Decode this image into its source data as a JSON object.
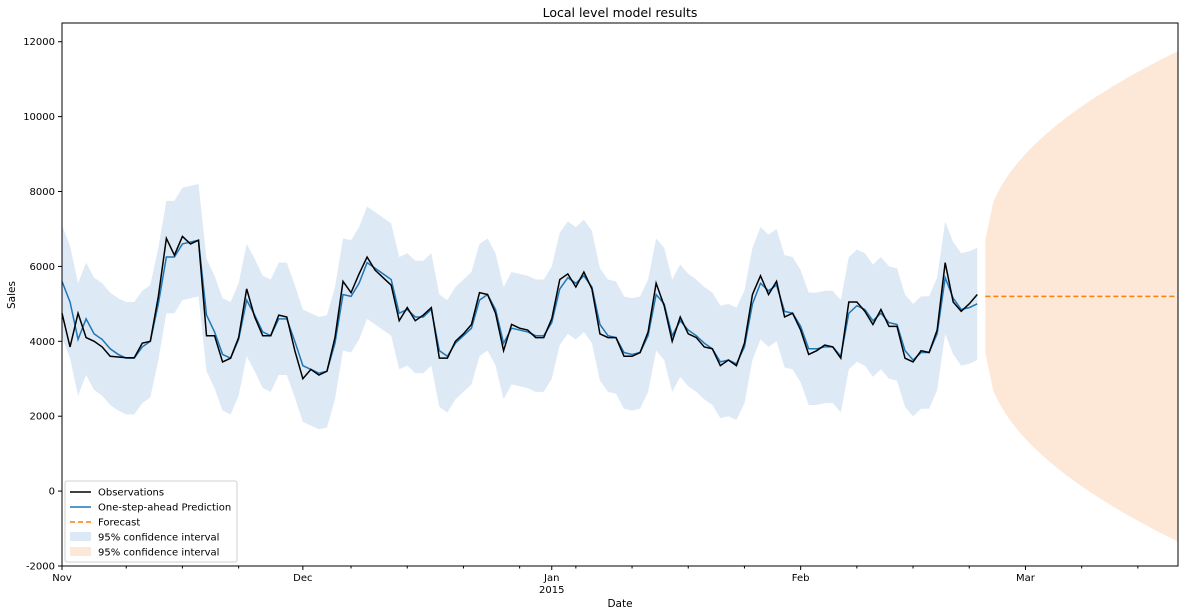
{
  "chart_data": {
    "type": "line",
    "title": "Local level model results",
    "xlabel": "Date",
    "ylabel": "Sales",
    "xlim": [
      "2014-11-01",
      "2015-03-20"
    ],
    "ylim": [
      -2000,
      12500
    ],
    "yticks": [
      -2000,
      0,
      2000,
      4000,
      6000,
      8000,
      10000,
      12000
    ],
    "xticks_major": [
      {
        "date": "2014-11-01",
        "label": "Nov",
        "sublabel": ""
      },
      {
        "date": "2014-12-01",
        "label": "Dec",
        "sublabel": ""
      },
      {
        "date": "2015-01-01",
        "label": "Jan",
        "sublabel": "2015"
      },
      {
        "date": "2015-02-01",
        "label": "Feb",
        "sublabel": ""
      },
      {
        "date": "2015-03-01",
        "label": "Mar",
        "sublabel": ""
      }
    ],
    "xticks_minor_dates": [
      "2014-11-09",
      "2014-11-16",
      "2014-11-23",
      "2014-12-07",
      "2014-12-14",
      "2014-12-21",
      "2014-12-28",
      "2015-01-04",
      "2015-01-11",
      "2015-01-18",
      "2015-01-25",
      "2015-02-08",
      "2015-02-15",
      "2015-02-22",
      "2015-03-08",
      "2015-03-15"
    ],
    "grid": false,
    "legend_position": "lower-left",
    "observations_start": "2014-11-01",
    "observations": [
      4750,
      3850,
      4750,
      4100,
      4000,
      3850,
      3600,
      3580,
      3560,
      3560,
      3950,
      4000,
      5200,
      6750,
      6300,
      6800,
      6600,
      6700,
      4150,
      4150,
      3450,
      3550,
      4100,
      5400,
      4650,
      4150,
      4150,
      4700,
      4650,
      3750,
      3000,
      3250,
      3100,
      3200,
      4100,
      5600,
      5300,
      5800,
      6250,
      5900,
      5700,
      5500,
      4550,
      4900,
      4550,
      4700,
      4900,
      3550,
      3550,
      4000,
      4200,
      4450,
      5300,
      5250,
      4750,
      3750,
      4450,
      4350,
      4300,
      4100,
      4100,
      4600,
      5650,
      5800,
      5450,
      5850,
      5400,
      4200,
      4100,
      4100,
      3600,
      3600,
      3700,
      4250,
      5550,
      4950,
      4000,
      4650,
      4200,
      4100,
      3850,
      3800,
      3350,
      3500,
      3350,
      3950,
      5250,
      5750,
      5250,
      5600,
      4650,
      4750,
      4300,
      3650,
      3750,
      3900,
      3850,
      3550,
      5050,
      5050,
      4800,
      4450,
      4850,
      4400,
      4400,
      3550,
      3450,
      3750,
      3700,
      4300,
      6100,
      5050,
      4800,
      5000,
      5250
    ],
    "predictions": [
      5600,
      5050,
      4050,
      4600,
      4200,
      4050,
      3800,
      3650,
      3550,
      3550,
      3850,
      4000,
      5000,
      6250,
      6250,
      6600,
      6650,
      6700,
      4700,
      4250,
      3650,
      3550,
      4050,
      5100,
      4700,
      4250,
      4150,
      4600,
      4600,
      4000,
      3350,
      3250,
      3150,
      3200,
      3950,
      5250,
      5200,
      5550,
      6100,
      5950,
      5800,
      5650,
      4750,
      4850,
      4650,
      4650,
      4850,
      3750,
      3600,
      3950,
      4150,
      4350,
      5100,
      5250,
      4850,
      3950,
      4350,
      4300,
      4250,
      4150,
      4150,
      4500,
      5400,
      5700,
      5550,
      5750,
      5450,
      4450,
      4150,
      4100,
      3700,
      3650,
      3700,
      4150,
      5250,
      5000,
      4150,
      4550,
      4300,
      4150,
      3950,
      3800,
      3450,
      3500,
      3400,
      3850,
      5000,
      5550,
      5350,
      5500,
      4800,
      4750,
      4400,
      3800,
      3800,
      3850,
      3850,
      3600,
      4750,
      4950,
      4850,
      4550,
      4750,
      4500,
      4450,
      3750,
      3500,
      3700,
      3700,
      4200,
      5700,
      5150,
      4850,
      4900,
      5000
    ],
    "forecast_start": "2015-02-24",
    "forecast_end": "2015-03-20",
    "forecast_value": 5200,
    "prediction_ci_halfwidth": 1500,
    "forecast_ci": {
      "start_halfwidth": 1500,
      "end_halfwidth": 6550
    },
    "legend": [
      {
        "label": "Observations",
        "kind": "line",
        "color": "#000000"
      },
      {
        "label": "One-step-ahead Prediction",
        "kind": "line",
        "color": "#1f77b4"
      },
      {
        "label": "Forecast",
        "kind": "dashed",
        "color": "#ff7f0e"
      },
      {
        "label": "95% confidence interval",
        "kind": "patch",
        "color": "#dce8f5"
      },
      {
        "label": "95% confidence interval",
        "kind": "patch",
        "color": "#fde8d7"
      }
    ],
    "colors": {
      "observations": "#000000",
      "prediction": "#1f77b4",
      "forecast": "#ff7f0e",
      "prediction_ci": "#dce8f5",
      "forecast_ci": "#fde8d7"
    }
  }
}
